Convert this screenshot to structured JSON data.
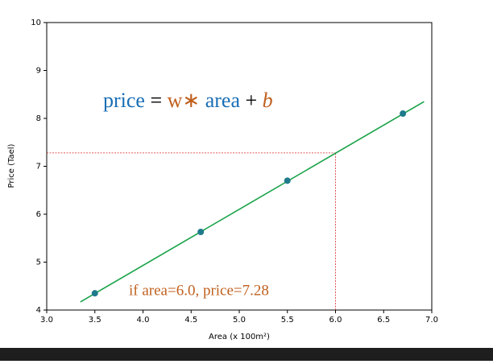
{
  "chart_data": {
    "type": "scatter",
    "x": [
      3.5,
      4.6,
      5.5,
      6.7
    ],
    "values": [
      4.35,
      5.63,
      6.7,
      8.1
    ],
    "color": "#1f7a8c",
    "fit_line": {
      "x": [
        3.35,
        6.92
      ],
      "values": [
        4.17,
        8.35
      ],
      "color": "#1aa34a"
    },
    "guide": {
      "x": 6.0,
      "y": 7.28,
      "color": "#d62728"
    },
    "xlim": [
      3.0,
      7.0
    ],
    "xticks": [
      3.0,
      3.5,
      4.0,
      4.5,
      5.0,
      5.5,
      6.0,
      6.5,
      7.0
    ],
    "ylim": [
      4,
      10
    ],
    "yticks": [
      4,
      5,
      6,
      7,
      8,
      9,
      10
    ],
    "xlabel": "Area (x 100m²)",
    "ylabel": "Price (Tael)",
    "equation": [
      {
        "text": "price",
        "color": "#1a6fb5"
      },
      {
        "text": " = ",
        "color": "#000000"
      },
      {
        "text": "w∗",
        "color": "#c0601e"
      },
      {
        "text": " area",
        "color": "#1a6fb5"
      },
      {
        "text": " + ",
        "color": "#000000"
      },
      {
        "text": "b",
        "color": "#c0601e",
        "italic": true
      }
    ],
    "annotation": "if area=6.0, price=7.28",
    "annotation_color": "#c0601e"
  }
}
